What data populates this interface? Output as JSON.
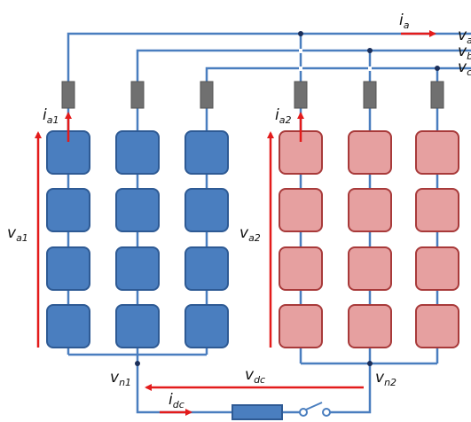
{
  "labels": {
    "i_a": {
      "main": "i",
      "sub": "a"
    },
    "v_top1": {
      "main": "v",
      "sub": "a"
    },
    "v_top2": {
      "main": "v",
      "sub": "b"
    },
    "v_top3": {
      "main": "v",
      "sub": "c"
    },
    "i_a1": {
      "main": "i",
      "sub": "a1"
    },
    "i_a2": {
      "main": "i",
      "sub": "a2"
    },
    "v_a1": {
      "main": "v",
      "sub": "a1"
    },
    "v_a2": {
      "main": "v",
      "sub": "a2"
    },
    "v_n1": {
      "main": "v",
      "sub": "n1"
    },
    "v_n2": {
      "main": "v",
      "sub": "n2"
    },
    "v_dc": {
      "main": "v",
      "sub": "dc"
    },
    "i_dc": {
      "main": "i",
      "sub": "dc"
    }
  },
  "colors": {
    "wire": "#4a7ebf",
    "arrow": "#e31b1b",
    "inductor": "#707070",
    "upper_fill": "#4a7ebf",
    "upper_stroke": "#2e5a94",
    "lower_fill": "#e6a0a0",
    "lower_stroke": "#a83a3a",
    "node": "#1b2f5a"
  }
}
